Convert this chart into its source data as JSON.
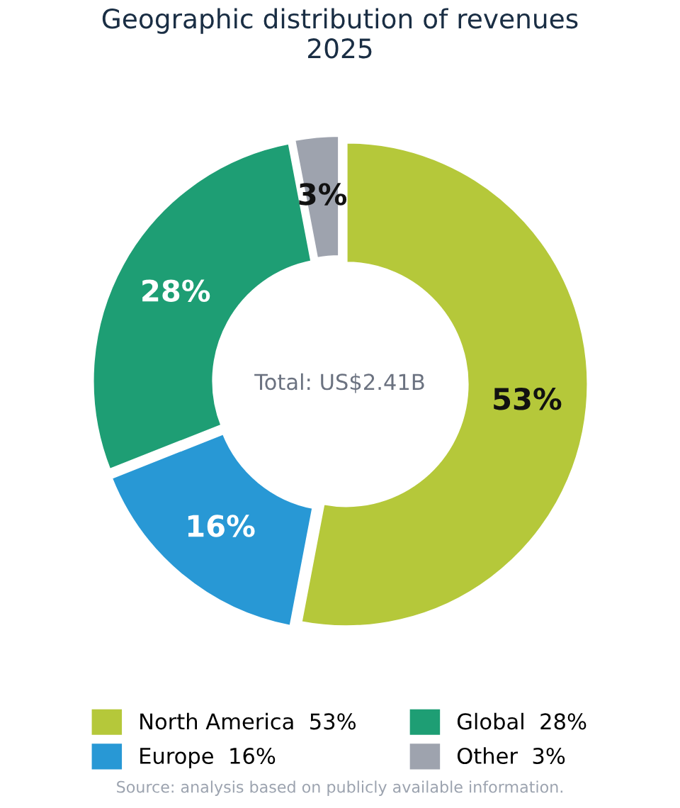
{
  "chart_data": {
    "type": "donut",
    "title": "Geographic distribution of revenues\n2025",
    "categories": [
      "North America  53%",
      "Europe  16%",
      "Global  28%",
      "Other  3%"
    ],
    "values": [
      53,
      16,
      28,
      3
    ],
    "colors": [
      "#b5c83a",
      "#2898d5",
      "#1e9e74",
      "#9ea3ae"
    ],
    "value_labels": [
      "53%",
      "16%",
      "28%",
      "3%"
    ],
    "legend": "bottom",
    "annotations": [
      "Total: US$2.41B",
      "Source: analysis based on publicly available information."
    ]
  }
}
